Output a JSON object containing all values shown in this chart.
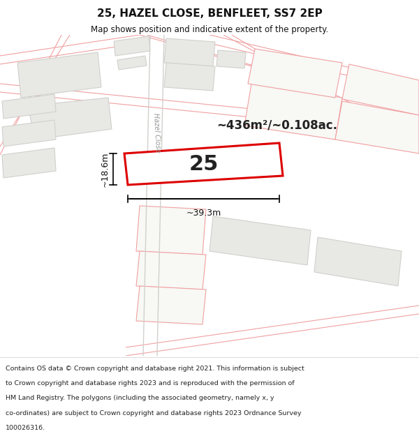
{
  "title": "25, HAZEL CLOSE, BENFLEET, SS7 2EP",
  "subtitle": "Map shows position and indicative extent of the property.",
  "area_text": "~436m²/~0.108ac.",
  "number_text": "25",
  "width_text": "~39.3m",
  "height_text": "~18.6m",
  "road_label": "Hazel Close",
  "map_bg": "#ffffff",
  "plot_fill": "#ffffff",
  "plot_edge": "#dd0000",
  "road_color": "#f0a0a0",
  "road_color2": "#d0d0cc",
  "building_fill": "#e8e8e4",
  "building_edge": "#c8c8c4",
  "footer_lines": [
    "Contains OS data © Crown copyright and database right 2021. This information is subject",
    "to Crown copyright and database rights 2023 and is reproduced with the permission of",
    "HM Land Registry. The polygons (including the associated geometry, namely x, y",
    "co-ordinates) are subject to Crown copyright and database rights 2023 Ordnance Survey",
    "100026316."
  ]
}
